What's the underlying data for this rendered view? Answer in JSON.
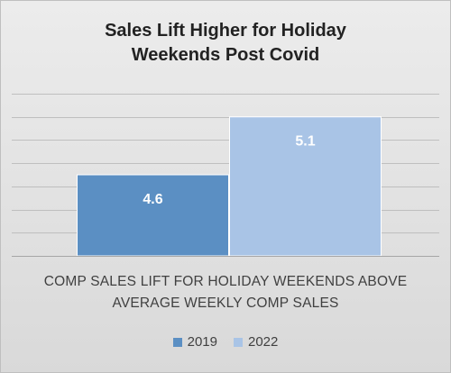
{
  "chart_data": {
    "type": "bar",
    "title": [
      "Sales Lift Higher for Holiday",
      "Weekends Post Covid"
    ],
    "xlabel": [
      "COMP SALES LIFT FOR HOLIDAY WEEKENDS ABOVE",
      "AVERAGE WEEKLY COMP SALES"
    ],
    "ylabel": "",
    "ylim": [
      3.9,
      5.3
    ],
    "grid": true,
    "legend_position": "bottom",
    "series": [
      {
        "name": "2019",
        "values": [
          4.6
        ],
        "label": "4.6",
        "color": "#5b8fc3"
      },
      {
        "name": "2022",
        "values": [
          5.1
        ],
        "label": "5.1",
        "color": "#a9c4e6"
      }
    ]
  }
}
